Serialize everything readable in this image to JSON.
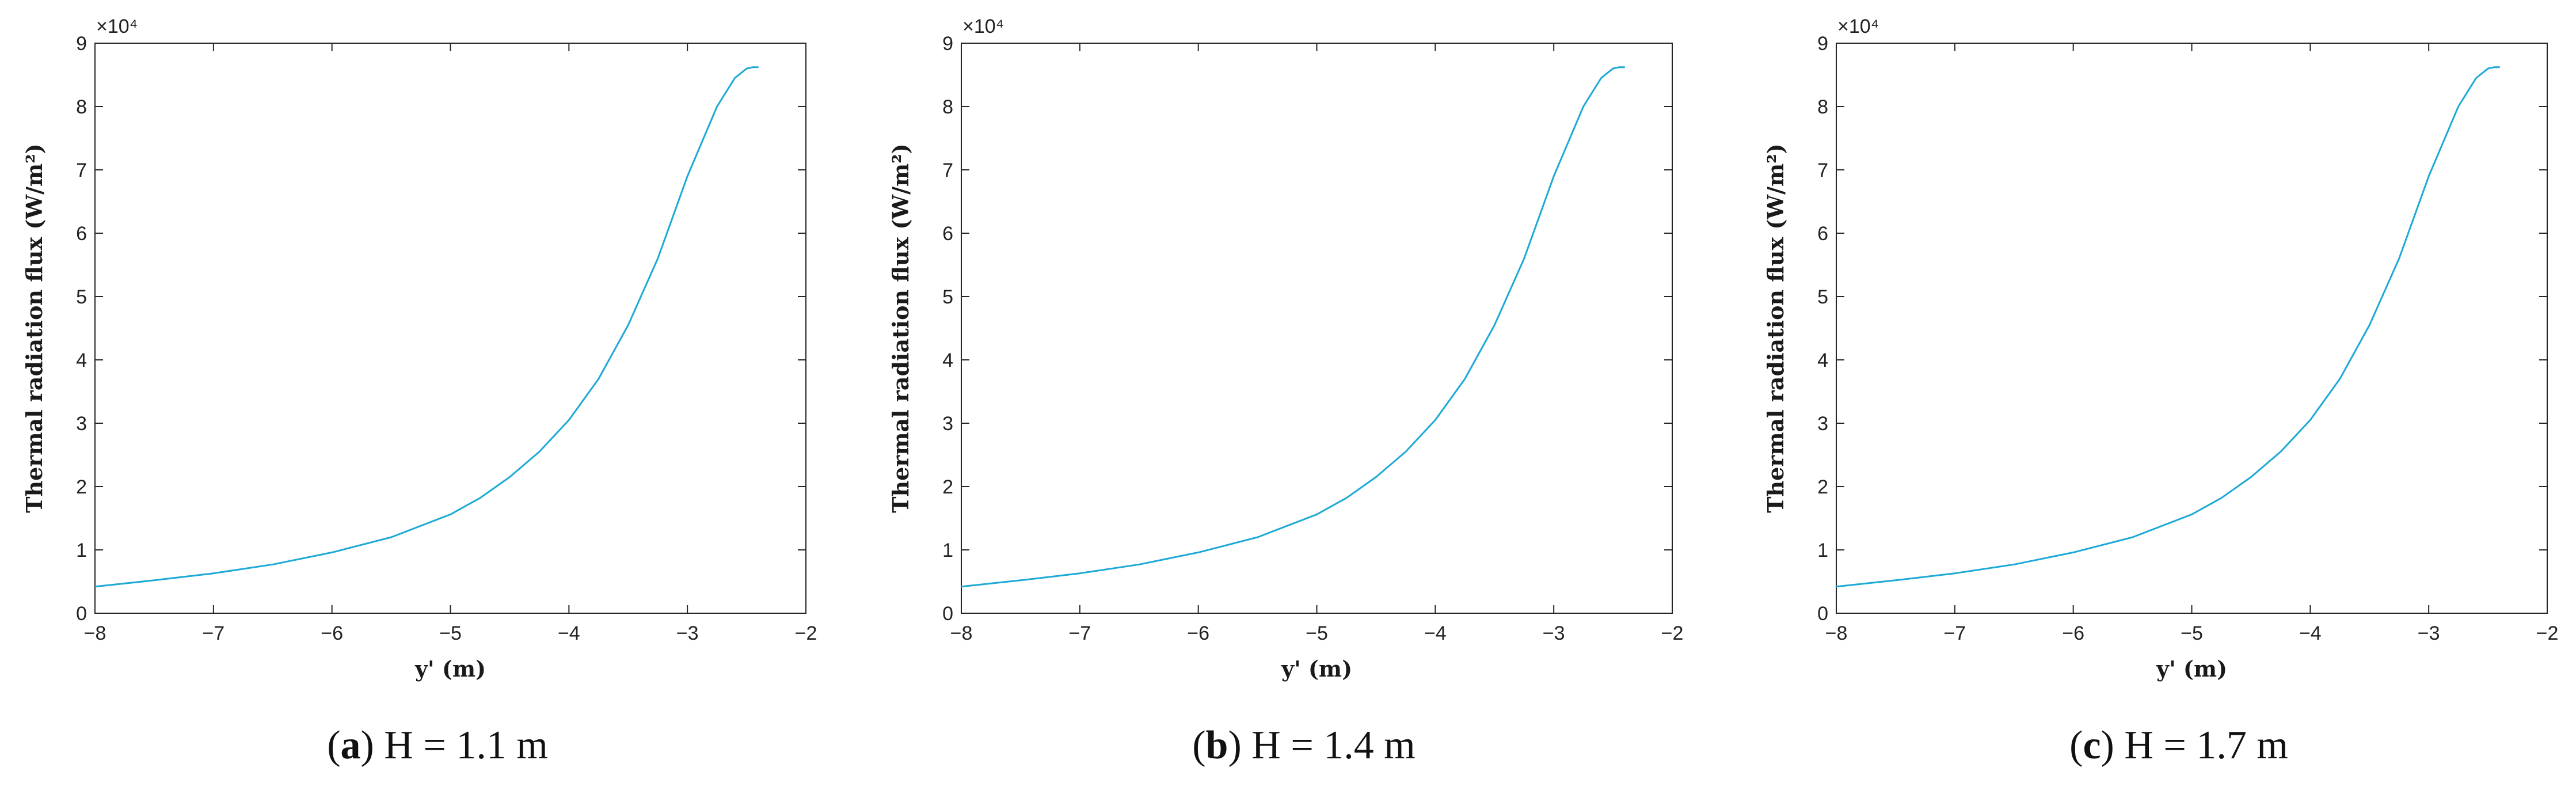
{
  "panels": [
    {
      "caption_letter": "a",
      "caption_rest": ") H = 1.1 m"
    },
    {
      "caption_letter": "b",
      "caption_rest": ") H = 1.4 m"
    },
    {
      "caption_letter": "c",
      "caption_rest": ") H = 1.7 m"
    }
  ],
  "chart_data": [
    {
      "type": "line",
      "ylabel": "Thermal radiation flux (W/m²)",
      "xlabel": "y' (m)",
      "exponent_label": "×10⁴",
      "xlim": [
        -8,
        -2
      ],
      "ylim": [
        0,
        9
      ],
      "xticks": [
        -8,
        -7,
        -6,
        -5,
        -4,
        -3,
        -2
      ],
      "yticks": [
        0,
        1,
        2,
        3,
        4,
        5,
        6,
        7,
        8,
        9
      ],
      "grid": false,
      "color": "#1ca9d6",
      "series": [
        {
          "x": [
            -8.0,
            -7.5,
            -7.0,
            -6.5,
            -6.0,
            -5.5,
            -5.0,
            -4.75,
            -4.5,
            -4.25,
            -4.0,
            -3.75,
            -3.5,
            -3.25,
            -3.0,
            -2.75,
            -2.6,
            -2.5,
            -2.45,
            -2.4
          ],
          "y": [
            0.42,
            0.52,
            0.63,
            0.77,
            0.96,
            1.2,
            1.56,
            1.82,
            2.15,
            2.55,
            3.05,
            3.7,
            4.55,
            5.6,
            6.9,
            8.0,
            8.45,
            8.6,
            8.62,
            8.62
          ]
        }
      ]
    },
    {
      "type": "line",
      "ylabel": "Thermal radiation flux (W/m²)",
      "xlabel": "y' (m)",
      "exponent_label": "×10⁴",
      "xlim": [
        -8,
        -2
      ],
      "ylim": [
        0,
        9
      ],
      "xticks": [
        -8,
        -7,
        -6,
        -5,
        -4,
        -3,
        -2
      ],
      "yticks": [
        0,
        1,
        2,
        3,
        4,
        5,
        6,
        7,
        8,
        9
      ],
      "grid": false,
      "color": "#1ca9d6",
      "series": [
        {
          "x": [
            -8.0,
            -7.5,
            -7.0,
            -6.5,
            -6.0,
            -5.5,
            -5.0,
            -4.75,
            -4.5,
            -4.25,
            -4.0,
            -3.75,
            -3.5,
            -3.25,
            -3.0,
            -2.75,
            -2.6,
            -2.5,
            -2.45,
            -2.4
          ],
          "y": [
            0.42,
            0.52,
            0.63,
            0.77,
            0.96,
            1.2,
            1.56,
            1.82,
            2.15,
            2.55,
            3.05,
            3.7,
            4.55,
            5.6,
            6.9,
            8.0,
            8.45,
            8.6,
            8.62,
            8.62
          ]
        }
      ]
    },
    {
      "type": "line",
      "ylabel": "Thermal radiation flux (W/m²)",
      "xlabel": "y' (m)",
      "exponent_label": "×10⁴",
      "xlim": [
        -8,
        -2
      ],
      "ylim": [
        0,
        9
      ],
      "xticks": [
        -8,
        -7,
        -6,
        -5,
        -4,
        -3,
        -2
      ],
      "yticks": [
        0,
        1,
        2,
        3,
        4,
        5,
        6,
        7,
        8,
        9
      ],
      "grid": false,
      "color": "#1ca9d6",
      "series": [
        {
          "x": [
            -8.0,
            -7.5,
            -7.0,
            -6.5,
            -6.0,
            -5.5,
            -5.0,
            -4.75,
            -4.5,
            -4.25,
            -4.0,
            -3.75,
            -3.5,
            -3.25,
            -3.0,
            -2.75,
            -2.6,
            -2.5,
            -2.45,
            -2.4
          ],
          "y": [
            0.42,
            0.52,
            0.63,
            0.77,
            0.96,
            1.2,
            1.56,
            1.82,
            2.15,
            2.55,
            3.05,
            3.7,
            4.55,
            5.6,
            6.9,
            8.0,
            8.45,
            8.6,
            8.62,
            8.62
          ]
        }
      ]
    }
  ]
}
